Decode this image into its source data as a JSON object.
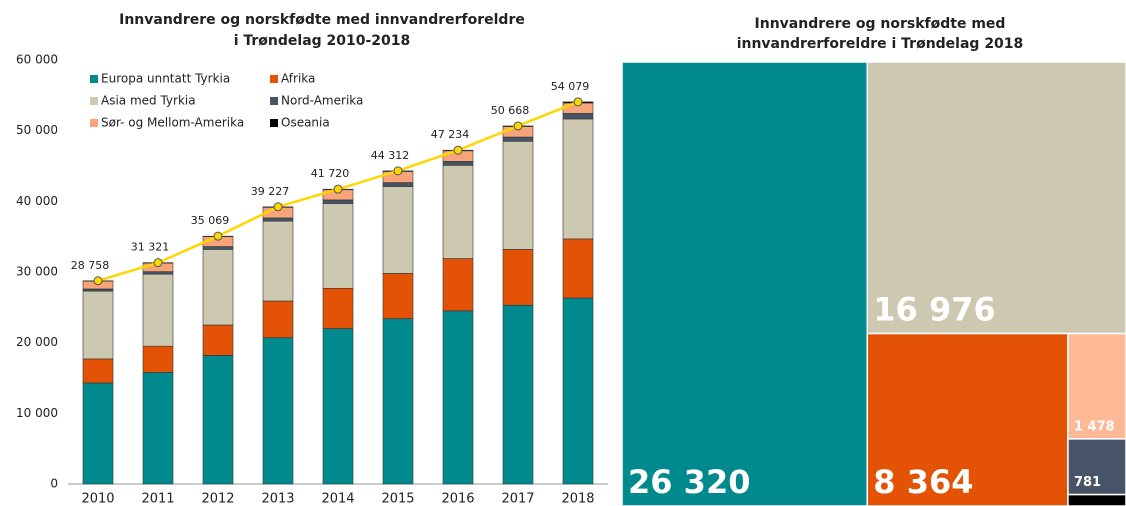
{
  "chart_data": [
    {
      "type": "stacked_bar_line",
      "title": [
        "Innvandrere og norskfødte med innvandrerforeldre",
        "i Trøndelag 2010-2018"
      ],
      "categories": [
        "2010",
        "2011",
        "2012",
        "2013",
        "2014",
        "2015",
        "2016",
        "2017",
        "2018"
      ],
      "series": [
        {
          "name": "Europa unntatt Tyrkia",
          "color": "#008a8e",
          "values": [
            14300,
            15800,
            18200,
            20700,
            22000,
            23400,
            24500,
            25300,
            26320
          ]
        },
        {
          "name": "Afrika",
          "color": "#e35205",
          "values": [
            3400,
            3700,
            4300,
            5200,
            5700,
            6400,
            7400,
            7900,
            8364
          ]
        },
        {
          "name": "Asia med Tyrkia",
          "color": "#cdc8b0",
          "values": [
            9600,
            10200,
            10700,
            11300,
            12000,
            12300,
            13200,
            15300,
            16976
          ]
        },
        {
          "name": "Nord-Amerika",
          "color": "#475467",
          "values": [
            300,
            350,
            400,
            450,
            500,
            550,
            550,
            600,
            781
          ]
        },
        {
          "name": "Sør- og Mellom-Amerika",
          "color": "#f7a479",
          "values": [
            1100,
            1200,
            1400,
            1500,
            1440,
            1580,
            1500,
            1480,
            1478
          ]
        },
        {
          "name": "Oseania",
          "color": "#000000",
          "values": [
            58,
            71,
            69,
            77,
            80,
            82,
            84,
            88,
            160
          ]
        }
      ],
      "line": {
        "color": "#ffd700",
        "values": [
          28758,
          31321,
          35069,
          39227,
          41720,
          44312,
          47234,
          50668,
          54079
        ],
        "value_labels": [
          "28 758",
          "31 321",
          "35 069",
          "39 227",
          "41 720",
          "44 312",
          "47 234",
          "50 668",
          "54 079"
        ]
      },
      "ylim": [
        0,
        60000
      ],
      "yticks": [
        0,
        {
          "value": 10000,
          "label": "10 000"
        },
        {
          "value": 20000,
          "label": "20 000"
        },
        {
          "value": 30000,
          "label": "30 000"
        },
        {
          "value": 40000,
          "label": "40 000"
        },
        {
          "value": 50000,
          "label": "50 000"
        },
        {
          "value": 60000,
          "label": "60 000"
        }
      ],
      "legend": "top-left"
    },
    {
      "type": "treemap",
      "title": [
        "Innvandrere og norskfødte med",
        "innvandrerforeldre i Trøndelag 2018"
      ],
      "categories": [
        "Europa unntatt Tyrkia",
        "Asia med Tyrkia",
        "Afrika",
        "Sør- og Mellom-Amerika",
        "Nord-Amerika",
        "Oseania"
      ],
      "values": [
        26320,
        16976,
        8364,
        1478,
        781,
        160
      ],
      "value_labels": [
        "26 320",
        "16 976",
        "8 364",
        "1 478",
        "781",
        null
      ],
      "colors": [
        "#008a8e",
        "#cdc8b0",
        "#e35205",
        "#fdb896",
        "#475467",
        "#000000"
      ]
    }
  ]
}
